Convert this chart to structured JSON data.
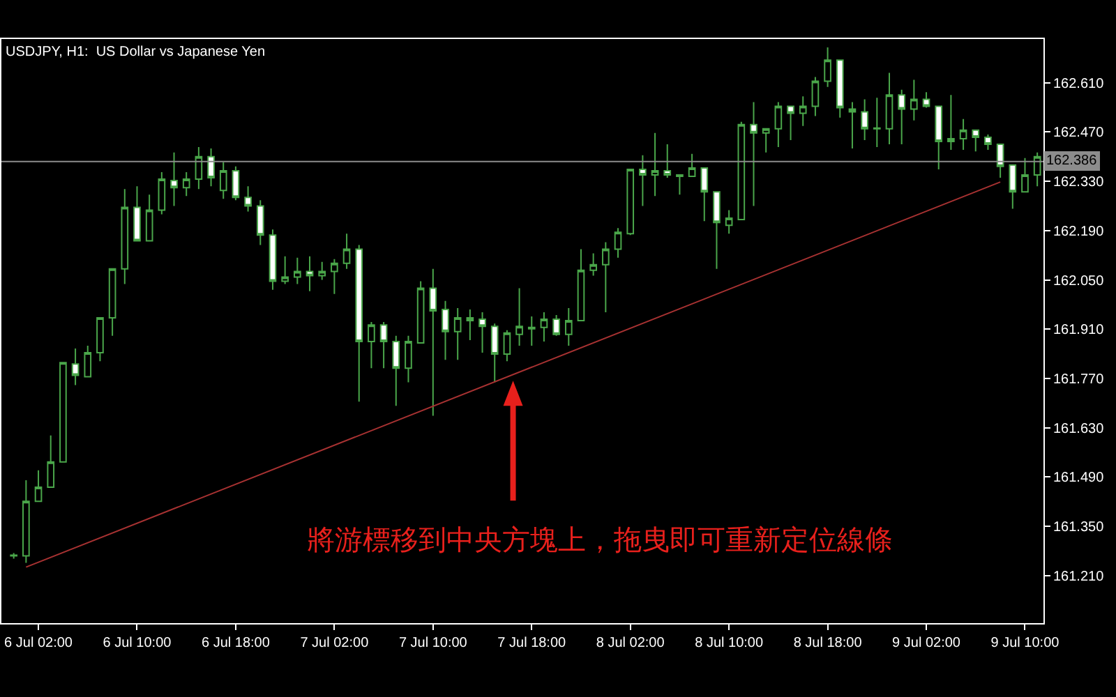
{
  "chart_data": {
    "type": "candlestick",
    "title": "USDJPY, H1:  US Dollar vs Japanese Yen",
    "x": [
      "--07-06T00:00",
      "--07-06T01:00",
      "--07-06T02:00",
      "--07-06T03:00",
      "--07-06T04:00",
      "--07-06T05:00",
      "--07-06T06:00",
      "--07-06T07:00",
      "--07-06T08:00",
      "--07-06T09:00",
      "--07-06T10:00",
      "--07-06T11:00",
      "--07-06T12:00",
      "--07-06T13:00",
      "--07-06T14:00",
      "--07-06T15:00",
      "--07-06T16:00",
      "--07-06T17:00",
      "--07-06T18:00",
      "--07-06T19:00",
      "--07-06T20:00",
      "--07-06T21:00",
      "--07-06T22:00",
      "--07-06T23:00",
      "--07-07T00:00",
      "--07-07T01:00",
      "--07-07T02:00",
      "--07-07T03:00",
      "--07-07T04:00",
      "--07-07T05:00",
      "--07-07T06:00",
      "--07-07T07:00",
      "--07-07T08:00",
      "--07-07T09:00",
      "--07-07T10:00",
      "--07-07T11:00",
      "--07-07T12:00",
      "--07-07T13:00",
      "--07-07T14:00",
      "--07-07T15:00",
      "--07-07T16:00",
      "--07-07T17:00",
      "--07-07T18:00",
      "--07-07T19:00",
      "--07-07T20:00",
      "--07-07T21:00",
      "--07-07T22:00",
      "--07-07T23:00",
      "--07-08T00:00",
      "--07-08T01:00",
      "--07-08T02:00",
      "--07-08T03:00",
      "--07-08T04:00",
      "--07-08T05:00",
      "--07-08T06:00",
      "--07-08T07:00",
      "--07-08T08:00",
      "--07-08T09:00",
      "--07-08T10:00",
      "--07-08T11:00",
      "--07-08T12:00",
      "--07-08T13:00",
      "--07-08T14:00",
      "--07-08T15:00",
      "--07-08T16:00",
      "--07-08T17:00",
      "--07-08T18:00",
      "--07-08T19:00",
      "--07-08T20:00",
      "--07-08T21:00",
      "--07-08T22:00",
      "--07-08T23:00",
      "--07-09T00:00",
      "--07-09T01:00",
      "--07-09T02:00",
      "--07-09T03:00",
      "--07-09T04:00",
      "--07-09T05:00",
      "--07-09T06:00",
      "--07-09T07:00",
      "--07-09T08:00",
      "--07-09T09:00",
      "--07-09T10:00",
      "--07-09T11:00"
    ],
    "series": [
      {
        "type": "line",
        "x": [
          "--07-06T01:00",
          "--07-09T08:00"
        ],
        "values": [
          161.234,
          162.328
        ],
        "color": "#a83232"
      },
      {
        "color": "#4aa64a",
        "ohlc": [
          [
            161.266,
            161.274,
            161.258,
            161.268
          ],
          [
            161.266,
            161.481,
            161.246,
            161.421
          ],
          [
            161.421,
            161.509,
            161.421,
            161.461
          ],
          [
            161.461,
            161.608,
            161.461,
            161.533
          ],
          [
            161.533,
            161.815,
            161.533,
            161.815
          ],
          [
            161.811,
            161.855,
            161.751,
            161.779
          ],
          [
            161.775,
            161.863,
            161.775,
            161.843
          ],
          [
            161.843,
            161.942,
            161.819,
            161.942
          ],
          [
            161.942,
            162.081,
            161.891,
            162.081
          ],
          [
            162.081,
            162.308,
            162.038,
            162.256
          ],
          [
            162.256,
            162.316,
            162.161,
            162.161
          ],
          [
            162.161,
            162.292,
            162.161,
            162.248
          ],
          [
            162.248,
            162.356,
            162.236,
            162.336
          ],
          [
            162.332,
            162.412,
            162.26,
            162.312
          ],
          [
            162.312,
            162.356,
            162.288,
            162.336
          ],
          [
            162.336,
            162.427,
            162.308,
            162.4
          ],
          [
            162.4,
            162.423,
            162.316,
            162.34
          ],
          [
            162.304,
            162.384,
            162.28,
            162.36
          ],
          [
            162.36,
            162.372,
            162.276,
            162.284
          ],
          [
            162.284,
            162.316,
            162.244,
            162.26
          ],
          [
            162.26,
            162.276,
            162.149,
            162.177
          ],
          [
            162.177,
            162.193,
            162.022,
            162.046
          ],
          [
            162.046,
            162.117,
            162.038,
            162.058
          ],
          [
            162.058,
            162.113,
            162.038,
            162.074
          ],
          [
            162.074,
            162.117,
            162.018,
            162.062
          ],
          [
            162.062,
            162.101,
            162.05,
            162.074
          ],
          [
            162.074,
            162.109,
            162.01,
            162.097
          ],
          [
            162.097,
            162.181,
            162.081,
            162.137
          ],
          [
            162.137,
            162.149,
            161.704,
            161.875
          ],
          [
            161.875,
            161.93,
            161.799,
            161.922
          ],
          [
            161.922,
            161.93,
            161.799,
            161.875
          ],
          [
            161.875,
            161.891,
            161.692,
            161.799
          ],
          [
            161.799,
            161.891,
            161.759,
            161.875
          ],
          [
            161.871,
            162.046,
            161.871,
            162.026
          ],
          [
            162.026,
            162.081,
            161.664,
            161.962
          ],
          [
            161.966,
            161.99,
            161.823,
            161.903
          ],
          [
            161.903,
            161.97,
            161.823,
            161.942
          ],
          [
            161.934,
            161.966,
            161.879,
            161.942
          ],
          [
            161.938,
            161.958,
            161.843,
            161.918
          ],
          [
            161.918,
            161.926,
            161.759,
            161.839
          ],
          [
            161.839,
            161.907,
            161.819,
            161.899
          ],
          [
            161.895,
            162.026,
            161.863,
            161.918
          ],
          [
            161.911,
            161.946,
            161.863,
            161.915
          ],
          [
            161.915,
            161.958,
            161.875,
            161.938
          ],
          [
            161.938,
            161.95,
            161.891,
            161.895
          ],
          [
            161.895,
            161.97,
            161.863,
            161.934
          ],
          [
            161.934,
            162.137,
            161.934,
            162.077
          ],
          [
            162.077,
            162.125,
            162.062,
            162.093
          ],
          [
            162.093,
            162.157,
            161.958,
            162.137
          ],
          [
            162.137,
            162.197,
            162.113,
            162.185
          ],
          [
            162.181,
            162.364,
            162.177,
            162.364
          ],
          [
            162.364,
            162.404,
            162.26,
            162.348
          ],
          [
            162.348,
            162.467,
            162.288,
            162.36
          ],
          [
            162.36,
            162.435,
            162.34,
            162.348
          ],
          [
            162.348,
            162.348,
            162.292,
            162.344
          ],
          [
            162.344,
            162.408,
            162.344,
            162.368
          ],
          [
            162.368,
            162.368,
            162.217,
            162.3
          ],
          [
            162.3,
            162.3,
            162.081,
            162.213
          ],
          [
            162.205,
            162.248,
            162.181,
            162.225
          ],
          [
            162.221,
            162.499,
            162.221,
            162.491
          ],
          [
            162.491,
            162.555,
            162.26,
            162.467
          ],
          [
            162.467,
            162.479,
            162.412,
            162.479
          ],
          [
            162.479,
            162.555,
            162.427,
            162.543
          ],
          [
            162.543,
            162.543,
            162.447,
            162.523
          ],
          [
            162.523,
            162.571,
            162.487,
            162.543
          ],
          [
            162.543,
            162.626,
            162.515,
            162.614
          ],
          [
            162.614,
            162.71,
            162.598,
            162.674
          ],
          [
            162.674,
            162.674,
            162.511,
            162.539
          ],
          [
            162.535,
            162.555,
            162.423,
            162.527
          ],
          [
            162.527,
            162.563,
            162.447,
            162.479
          ],
          [
            162.479,
            162.567,
            162.427,
            162.481
          ],
          [
            162.479,
            162.638,
            162.435,
            162.575
          ],
          [
            162.575,
            162.59,
            162.435,
            162.535
          ],
          [
            162.535,
            162.618,
            162.503,
            162.563
          ],
          [
            162.563,
            162.583,
            162.539,
            162.543
          ],
          [
            162.543,
            162.543,
            162.364,
            162.443
          ],
          [
            162.443,
            162.575,
            162.419,
            162.451
          ],
          [
            162.451,
            162.507,
            162.419,
            162.475
          ],
          [
            162.475,
            162.475,
            162.415,
            162.455
          ],
          [
            162.455,
            162.463,
            162.419,
            162.435
          ],
          [
            162.435,
            162.435,
            162.34,
            162.372
          ],
          [
            162.376,
            162.376,
            162.252,
            162.3
          ],
          [
            162.3,
            162.396,
            162.3,
            162.348
          ],
          [
            162.348,
            162.412,
            162.316,
            162.4
          ]
        ]
      }
    ],
    "xlim": [
      "--07-05T23:00",
      "--07-09T11:30"
    ],
    "xticks": [
      {
        "value": "--07-06T02:00",
        "label": "6 Jul 02:00"
      },
      {
        "value": "--07-06T10:00",
        "label": "6 Jul 10:00"
      },
      {
        "value": "--07-06T18:00",
        "label": "6 Jul 18:00"
      },
      {
        "value": "--07-07T02:00",
        "label": "7 Jul 02:00"
      },
      {
        "value": "--07-07T10:00",
        "label": "7 Jul 10:00"
      },
      {
        "value": "--07-07T18:00",
        "label": "7 Jul 18:00"
      },
      {
        "value": "--07-08T02:00",
        "label": "8 Jul 02:00"
      },
      {
        "value": "--07-08T10:00",
        "label": "8 Jul 10:00"
      },
      {
        "value": "--07-08T18:00",
        "label": "8 Jul 18:00"
      },
      {
        "value": "--07-09T02:00",
        "label": "9 Jul 02:00"
      },
      {
        "value": "--07-09T10:00",
        "label": "9 Jul 10:00"
      }
    ],
    "ylim": [
      161.075,
      162.734
    ],
    "yticks": [
      {
        "value": 161.21,
        "label": "161.210"
      },
      {
        "value": 161.35,
        "label": "161.350"
      },
      {
        "value": 161.49,
        "label": "161.490"
      },
      {
        "value": 161.63,
        "label": "161.630"
      },
      {
        "value": 161.77,
        "label": "161.770"
      },
      {
        "value": 161.91,
        "label": "161.910"
      },
      {
        "value": 162.05,
        "label": "162.050"
      },
      {
        "value": 162.19,
        "label": "162.190"
      },
      {
        "value": 162.33,
        "label": "162.330"
      },
      {
        "value": 162.47,
        "label": "162.470"
      },
      {
        "value": 162.61,
        "label": "162.610"
      }
    ],
    "ref_lines": [
      {
        "axis": "y",
        "value": 162.386,
        "label": "162.386",
        "color": "#8c8c8c"
      }
    ],
    "annotations": [
      "將游標移到中央方塊上，拖曳即可重新定位線條"
    ],
    "grid": false
  }
}
